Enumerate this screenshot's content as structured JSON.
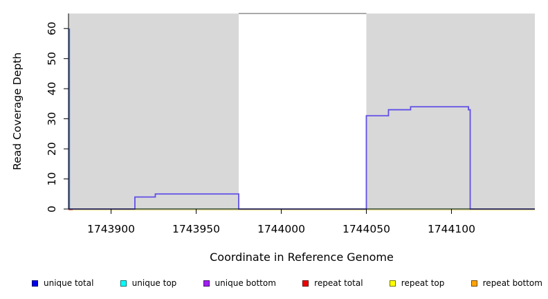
{
  "figure": {
    "xlabel": "Coordinate in Reference Genome",
    "ylabel": "Read Coverage Depth"
  },
  "chart_data": {
    "type": "step-line",
    "title": "",
    "xlabel": "Coordinate in Reference Genome",
    "ylabel": "Read Coverage Depth",
    "xlim": [
      1743875,
      1744149
    ],
    "ylim": [
      0,
      65
    ],
    "x_ticks": [
      1743900,
      1743950,
      1744000,
      1744050,
      1744100
    ],
    "y_ticks": [
      0,
      10,
      20,
      30,
      40,
      50,
      60
    ],
    "grid": false,
    "legend_position": "bottom",
    "shaded_regions": [
      {
        "x0": 1743875,
        "x1": 1743975,
        "color": "#D8D8D8"
      },
      {
        "x0": 1744050,
        "x1": 1744149,
        "color": "#D8D8D8"
      }
    ],
    "series": [
      {
        "name": "unique total",
        "color": "#0000EE",
        "render_color": "#3A6BDD",
        "points": [
          [
            1743875,
            60
          ],
          [
            1743876,
            0
          ],
          [
            1744149,
            0
          ]
        ]
      },
      {
        "name": "unique top",
        "color": "#00FFFF",
        "render_color": "#7CC87C",
        "points": [
          [
            1743875,
            0
          ],
          [
            1744149,
            0
          ]
        ]
      },
      {
        "name": "unique bottom",
        "color": "#A020F0",
        "render_color": "#5F4EE6",
        "step_points": [
          [
            1743875,
            0
          ],
          [
            1743914,
            4
          ],
          [
            1743926,
            5
          ],
          [
            1743975,
            0
          ],
          [
            1744050,
            31
          ],
          [
            1744063,
            33
          ],
          [
            1744076,
            34
          ],
          [
            1744110,
            33
          ],
          [
            1744111,
            0
          ],
          [
            1744149,
            0
          ]
        ]
      },
      {
        "name": "repeat total",
        "color": "#EE0000",
        "render_color": "#E05040",
        "points": [
          [
            1743875,
            0
          ],
          [
            1744149,
            0
          ]
        ]
      },
      {
        "name": "repeat top",
        "color": "#FFFF00",
        "render_color": "#E3D96F",
        "points": [
          [
            1743875,
            0
          ],
          [
            1744149,
            0
          ]
        ]
      },
      {
        "name": "repeat bottom",
        "color": "#FFA500",
        "render_color": "#E3A93F",
        "points": [
          [
            1743875,
            0
          ],
          [
            1744149,
            0
          ]
        ]
      }
    ]
  },
  "legend": {
    "items": [
      {
        "label": "unique total",
        "color": "#0000EE"
      },
      {
        "label": "unique top",
        "color": "#00FFFF"
      },
      {
        "label": "unique bottom",
        "color": "#A020F0"
      },
      {
        "label": "repeat total",
        "color": "#EE0000"
      },
      {
        "label": "repeat top",
        "color": "#FFFF00"
      },
      {
        "label": "repeat bottom",
        "color": "#FFA500"
      }
    ]
  }
}
